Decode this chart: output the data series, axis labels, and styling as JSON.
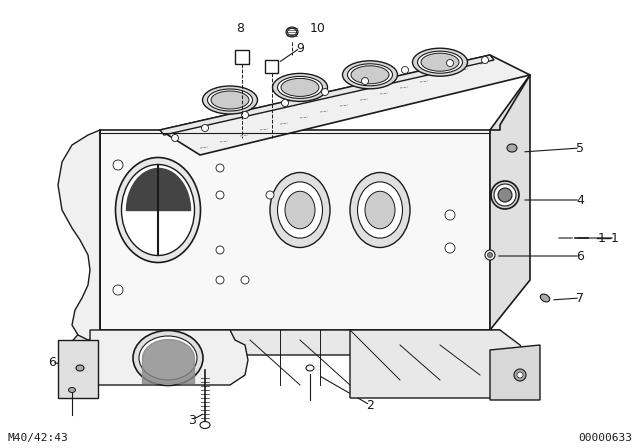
{
  "bg_color": "#ffffff",
  "line_color": "#1a1a1a",
  "bottom_left_text": "M40/42:43",
  "bottom_right_text": "00000633",
  "figsize": [
    6.4,
    4.48
  ],
  "dpi": 100
}
